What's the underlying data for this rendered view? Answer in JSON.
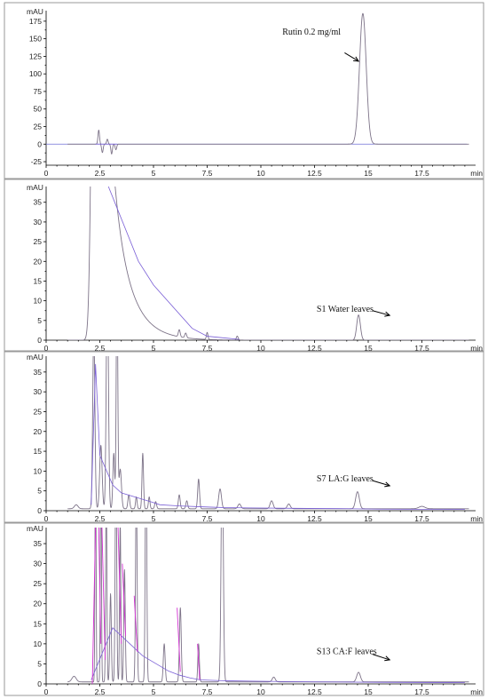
{
  "chart_data": [
    {
      "type": "line",
      "panel": 1,
      "ylabel": "mAU",
      "xlabel": "min",
      "xlim": [
        0,
        20
      ],
      "ylim": [
        -30,
        190
      ],
      "x_ticks": [
        0,
        2.5,
        5,
        7.5,
        10,
        12.5,
        15,
        17.5
      ],
      "x_tick_labels": [
        "0",
        "2.5",
        "5",
        "7.5",
        "10",
        "12.5",
        "15",
        "17.5"
      ],
      "y_ticks": [
        -25,
        0,
        25,
        50,
        75,
        100,
        125,
        150,
        175
      ],
      "annotation": "Rutin 0.2 mg/ml",
      "annotation_pos": [
        11.0,
        156
      ],
      "arrow": [
        [
          13.9,
          130
        ],
        [
          14.55,
          118
        ]
      ],
      "baseline_y": 0,
      "peaks": [
        {
          "t": 2.45,
          "h": 20,
          "w": 0.05
        },
        {
          "t": 2.62,
          "h": -12,
          "w": 0.05
        },
        {
          "t": 2.85,
          "h": 7,
          "w": 0.05
        },
        {
          "t": 3.05,
          "h": -14,
          "w": 0.05
        },
        {
          "t": 3.25,
          "h": -8,
          "w": 0.05
        },
        {
          "t": 14.75,
          "h": 186,
          "w": 0.22
        }
      ],
      "baseline_segments": [
        [
          [
            2.3,
            0
          ],
          [
            3.3,
            0
          ]
        ]
      ]
    },
    {
      "type": "line",
      "panel": 2,
      "ylabel": "mAU",
      "xlabel": "min",
      "xlim": [
        0,
        20
      ],
      "ylim": [
        0,
        39
      ],
      "x_ticks": [
        0,
        2.5,
        5,
        7.5,
        10,
        12.5,
        15,
        17.5
      ],
      "x_tick_labels": [
        "0",
        "2.5",
        "5",
        "7.5",
        "10",
        "12.5",
        "15",
        "17.5"
      ],
      "y_ticks": [
        0,
        5,
        10,
        15,
        20,
        25,
        30,
        35
      ],
      "annotation": "S1 Water leaves",
      "annotation_pos": [
        12.6,
        7.2
      ],
      "arrow": [
        [
          15.2,
          7.5
        ],
        [
          16.0,
          6.3
        ]
      ],
      "baseline_y": 0,
      "solvent": {
        "t0": 2.25,
        "sigma_left": 0.18,
        "h": 120,
        "decay": 0.85,
        "tail_h": 60
      },
      "peaks": [
        {
          "t": 6.2,
          "h": 1.8,
          "w": 0.06
        },
        {
          "t": 6.5,
          "h": 1.2,
          "w": 0.06
        },
        {
          "t": 7.5,
          "h": 1.8,
          "w": 0.05
        },
        {
          "t": 8.9,
          "h": 1.0,
          "w": 0.06
        },
        {
          "t": 14.55,
          "h": 6.4,
          "w": 0.12
        }
      ],
      "baseline_segments": [
        [
          [
            2.9,
            39
          ],
          [
            4.3,
            20
          ],
          [
            5.0,
            14
          ],
          [
            6.8,
            3
          ],
          [
            7.5,
            1
          ],
          [
            9.0,
            0.2
          ]
        ]
      ]
    },
    {
      "type": "line",
      "panel": 3,
      "ylabel": "mAU",
      "xlabel": "min",
      "xlim": [
        0,
        20
      ],
      "ylim": [
        0,
        39
      ],
      "x_ticks": [
        0,
        2.5,
        5,
        7.5,
        10,
        12.5,
        15,
        17.5
      ],
      "x_tick_labels": [
        "0",
        "2.5",
        "5",
        "7.5",
        "10",
        "12.5",
        "15",
        "17.5"
      ],
      "y_ticks": [
        0,
        5,
        10,
        15,
        20,
        25,
        30,
        35
      ],
      "annotation": "S7 LA:G leaves",
      "annotation_pos": [
        12.6,
        7.4
      ],
      "arrow": [
        [
          15.2,
          7.6
        ],
        [
          16.0,
          6.3
        ]
      ],
      "baseline_y": 0.5,
      "peaks": [
        {
          "t": 1.4,
          "h": 1.0,
          "w": 0.12
        },
        {
          "t": 2.22,
          "h": 45,
          "w": 0.07
        },
        {
          "t": 2.55,
          "h": 16,
          "w": 0.08
        },
        {
          "t": 2.85,
          "h": 60,
          "w": 0.07
        },
        {
          "t": 3.15,
          "h": 14,
          "w": 0.06
        },
        {
          "t": 3.3,
          "h": 60,
          "w": 0.05
        },
        {
          "t": 3.45,
          "h": 10,
          "w": 0.08
        },
        {
          "t": 3.85,
          "h": 3.5,
          "w": 0.06
        },
        {
          "t": 4.2,
          "h": 3.0,
          "w": 0.05
        },
        {
          "t": 4.5,
          "h": 14,
          "w": 0.05
        },
        {
          "t": 4.8,
          "h": 3.0,
          "w": 0.05
        },
        {
          "t": 5.1,
          "h": 1.8,
          "w": 0.06
        },
        {
          "t": 6.2,
          "h": 3.5,
          "w": 0.06
        },
        {
          "t": 6.55,
          "h": 2.0,
          "w": 0.06
        },
        {
          "t": 7.1,
          "h": 7.5,
          "w": 0.06
        },
        {
          "t": 8.1,
          "h": 5.0,
          "w": 0.09
        },
        {
          "t": 9.0,
          "h": 1.2,
          "w": 0.1
        },
        {
          "t": 10.5,
          "h": 2.0,
          "w": 0.1
        },
        {
          "t": 11.3,
          "h": 1.2,
          "w": 0.1
        },
        {
          "t": 14.5,
          "h": 4.3,
          "w": 0.12
        },
        {
          "t": 17.5,
          "h": 0.6,
          "w": 0.2
        }
      ],
      "baseline_segments": [
        [
          [
            2.1,
            1.5
          ],
          [
            2.3,
            37
          ],
          [
            2.5,
            14
          ],
          [
            3.1,
            6.5
          ],
          [
            3.5,
            4.5
          ],
          [
            4.3,
            3.2
          ],
          [
            4.9,
            2.2
          ],
          [
            5.3,
            1.5
          ],
          [
            6.2,
            1.2
          ],
          [
            7.2,
            1.0
          ],
          [
            8.2,
            0.8
          ],
          [
            9.5,
            0.7
          ],
          [
            11.5,
            0.6
          ],
          [
            14.0,
            0.5
          ],
          [
            15.5,
            0.4
          ],
          [
            19.5,
            0.3
          ]
        ]
      ]
    },
    {
      "type": "line",
      "panel": 4,
      "ylabel": "mAU",
      "xlabel": "min",
      "xlim": [
        0,
        20
      ],
      "ylim": [
        0,
        39
      ],
      "x_ticks": [
        0,
        2.5,
        5,
        7.5,
        10,
        12.5,
        15,
        17.5
      ],
      "x_tick_labels": [
        "0",
        "2.5",
        "5",
        "7.5",
        "10",
        "12.5",
        "15",
        "17.5"
      ],
      "y_ticks": [
        0,
        5,
        10,
        15,
        20,
        25,
        30,
        35
      ],
      "annotation": "S13 CA:F leaves",
      "annotation_pos": [
        12.6,
        7.4
      ],
      "arrow": [
        [
          15.2,
          7.4
        ],
        [
          16.0,
          6.0
        ]
      ],
      "baseline_y": 0.5,
      "peaks": [
        {
          "t": 1.3,
          "h": 1.4,
          "w": 0.14
        },
        {
          "t": 2.3,
          "h": 60,
          "w": 0.035
        },
        {
          "t": 2.55,
          "h": 60,
          "w": 0.035
        },
        {
          "t": 2.8,
          "h": 50,
          "w": 0.04
        },
        {
          "t": 3.0,
          "h": 22,
          "w": 0.05
        },
        {
          "t": 3.25,
          "h": 55,
          "w": 0.05
        },
        {
          "t": 3.45,
          "h": 40,
          "w": 0.04
        },
        {
          "t": 3.65,
          "h": 28,
          "w": 0.05
        },
        {
          "t": 4.2,
          "h": 50,
          "w": 0.05
        },
        {
          "t": 4.65,
          "h": 60,
          "w": 0.05
        },
        {
          "t": 5.5,
          "h": 9.5,
          "w": 0.06
        },
        {
          "t": 6.25,
          "h": 18.5,
          "w": 0.06
        },
        {
          "t": 7.1,
          "h": 9.5,
          "w": 0.05
        },
        {
          "t": 8.2,
          "h": 60,
          "w": 0.07
        },
        {
          "t": 10.6,
          "h": 1.2,
          "w": 0.1
        },
        {
          "t": 14.55,
          "h": 2.4,
          "w": 0.12
        }
      ],
      "baseline_segments": [
        [
          [
            2.1,
            1
          ],
          [
            3.1,
            14
          ],
          [
            4.5,
            7
          ],
          [
            5.7,
            3.2
          ],
          [
            6.2,
            2.2
          ],
          [
            6.7,
            1.5
          ],
          [
            7.2,
            1.0
          ],
          [
            8.2,
            0.8
          ],
          [
            9.5,
            0.7
          ],
          [
            12.5,
            0.5
          ],
          [
            15.5,
            0.4
          ],
          [
            19.5,
            0.3
          ]
        ]
      ],
      "magenta_lines": [
        [
          [
            2.15,
            0
          ],
          [
            2.3,
            39
          ]
        ],
        [
          [
            2.45,
            39
          ],
          [
            2.55,
            10
          ]
        ],
        [
          [
            2.6,
            39
          ],
          [
            2.75,
            6
          ]
        ],
        [
          [
            3.35,
            39
          ],
          [
            3.5,
            10
          ]
        ],
        [
          [
            3.55,
            30
          ],
          [
            3.7,
            12
          ]
        ],
        [
          [
            4.1,
            22
          ],
          [
            4.25,
            8
          ]
        ],
        [
          [
            6.1,
            19
          ],
          [
            6.25,
            3
          ]
        ],
        [
          [
            7.05,
            10
          ],
          [
            7.15,
            1
          ]
        ]
      ]
    }
  ]
}
